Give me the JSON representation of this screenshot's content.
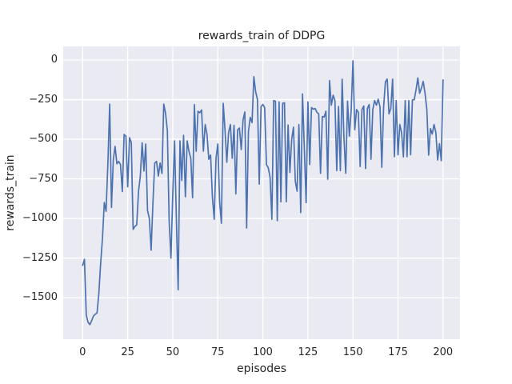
{
  "figure": {
    "title": "rewards_train of DDPG",
    "xlabel": "episodes",
    "ylabel": "rewards_train"
  },
  "colors": {
    "line": "#4c72b0",
    "plot_background": "#eaeaf2",
    "grid": "#ffffff",
    "text": "#262626",
    "figure_background": "#ffffff"
  },
  "chart_data": {
    "type": "line",
    "title": "rewards_train of DDPG",
    "xlabel": "episodes",
    "ylabel": "rewards_train",
    "grid": true,
    "legend": "none",
    "x_ticks": [
      0,
      25,
      50,
      75,
      100,
      125,
      150,
      175,
      200
    ],
    "y_ticks": [
      0,
      -250,
      -500,
      -750,
      -1000,
      -1250,
      -1500
    ],
    "xlim": [
      -10.8,
      209.4
    ],
    "ylim": [
      -1762,
      86
    ],
    "series": [
      {
        "name": "rewards_train",
        "color": "#4c72b0",
        "x_start": 0,
        "x_step": 1,
        "values": [
          -1296,
          -1258,
          -1610,
          -1655,
          -1670,
          -1645,
          -1615,
          -1605,
          -1595,
          -1470,
          -1280,
          -1125,
          -900,
          -955,
          -650,
          -278,
          -930,
          -630,
          -545,
          -655,
          -640,
          -660,
          -830,
          -470,
          -480,
          -800,
          -490,
          -520,
          -1069,
          -1050,
          -1040,
          -830,
          -732,
          -522,
          -700,
          -530,
          -950,
          -1000,
          -1200,
          -900,
          -650,
          -640,
          -732,
          -650,
          -716,
          -278,
          -336,
          -445,
          -1018,
          -1250,
          -850,
          -510,
          -1000,
          -1450,
          -510,
          -760,
          -475,
          -863,
          -510,
          -576,
          -620,
          -869,
          -281,
          -576,
          -323,
          -333,
          -315,
          -575,
          -407,
          -470,
          -626,
          -600,
          -865,
          -1005,
          -620,
          -530,
          -895,
          -1030,
          -273,
          -440,
          -645,
          -455,
          -407,
          -620,
          -412,
          -845,
          -440,
          -429,
          -565,
          -378,
          -328,
          -1060,
          -450,
          -362,
          -395,
          -105,
          -200,
          -250,
          -783,
          -294,
          -280,
          -300,
          -660,
          -680,
          -740,
          -1005,
          -256,
          -260,
          -1014,
          -264,
          -895,
          -273,
          -270,
          -895,
          -410,
          -710,
          -500,
          -424,
          -765,
          -828,
          -407,
          -963,
          -214,
          -550,
          -900,
          -264,
          -660,
          -300,
          -310,
          -306,
          -330,
          -340,
          -715,
          -356,
          -360,
          -323,
          -752,
          -130,
          -285,
          -222,
          -256,
          -698,
          -293,
          -698,
          -121,
          -490,
          -715,
          -260,
          -480,
          -320,
          -5,
          -440,
          -313,
          -330,
          -672,
          -313,
          -290,
          -685,
          -306,
          -281,
          -626,
          -313,
          -256,
          -285,
          -247,
          -295,
          -677,
          -300,
          -138,
          -120,
          -340,
          -306,
          -121,
          -610,
          -256,
          -598,
          -407,
          -460,
          -611,
          -256,
          -610,
          -256,
          -598,
          -252,
          -250,
          -188,
          -113,
          -210,
          -177,
          -135,
          -210,
          -312,
          -600,
          -433,
          -467,
          -407,
          -458,
          -631,
          -528,
          -635,
          -125
        ]
      }
    ]
  }
}
